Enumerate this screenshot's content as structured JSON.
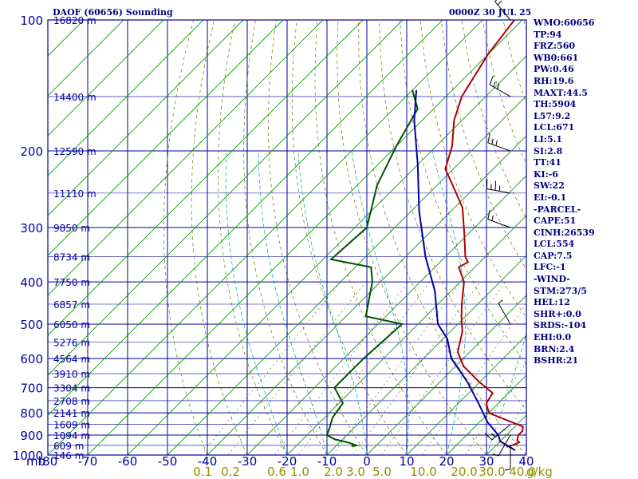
{
  "header": {
    "title": "DAOF (60656) Sounding",
    "time": "0000Z 30 JUL 25"
  },
  "stats": [
    "WMO:60656",
    "TP:94",
    "FRZ:560",
    "WB0:661",
    "PW:0.46",
    "RH:19.6",
    "MAXT:44.5",
    "TH:5904",
    "L57:9.2",
    "LCL:671",
    "LI:5.1",
    "SI:2.8",
    "TT:41",
    "KI:-6",
    "SW:22",
    "EI:-0.1",
    "-PARCEL-",
    "CAPE:51",
    "CINH:26539",
    "LCL:554",
    "CAP:7.5",
    "LFC:-1",
    "-WIND-",
    "STM:273/5",
    "HEL:12",
    "SHR+:0.0",
    "SRDS:-104",
    "EHI:0.0",
    "BRN:2.4",
    "BSHR:21"
  ],
  "colors": {
    "grid": "#0000a0",
    "isotherm": "#00a000",
    "temperature": "#b00000",
    "dewpoint": "#005000",
    "parcel": "#0000a0",
    "mixing": "#a0a000",
    "moist": "#00a0a0",
    "text": "#000080"
  },
  "chart_data": {
    "type": "line",
    "title": "DAOF (60656) Sounding",
    "x_unit_label": "-80",
    "x_ticks": [
      "-80",
      "-70",
      "-60",
      "-50",
      "-40",
      "-30",
      "-20",
      "-10",
      "0",
      "10",
      "20",
      "30",
      "40"
    ],
    "y_unit_label": "mb",
    "y_ticks": [
      "100",
      "200",
      "300",
      "400",
      "500",
      "600",
      "700",
      "800",
      "900",
      "1000"
    ],
    "height_labels": [
      {
        "p": 100,
        "label": "16820 m"
      },
      {
        "p": 150,
        "label": "14400 m"
      },
      {
        "p": 200,
        "label": "12590 m"
      },
      {
        "p": 250,
        "label": "11110 m"
      },
      {
        "p": 300,
        "label": "9850 m"
      },
      {
        "p": 350,
        "label": "8734 m"
      },
      {
        "p": 400,
        "label": "7750 m"
      },
      {
        "p": 450,
        "label": "6857 m"
      },
      {
        "p": 500,
        "label": "6050 m"
      },
      {
        "p": 550,
        "label": "5276 m"
      },
      {
        "p": 600,
        "label": "4564 m"
      },
      {
        "p": 650,
        "label": "3910 m"
      },
      {
        "p": 700,
        "label": "3304 m"
      },
      {
        "p": 750,
        "label": "2708 m"
      },
      {
        "p": 800,
        "label": "2141 m"
      },
      {
        "p": 850,
        "label": "1609 m"
      },
      {
        "p": 900,
        "label": "1094 m"
      },
      {
        "p": 950,
        "label": "609 m"
      },
      {
        "p": 1000,
        "label": "146 m"
      }
    ],
    "mixing_ratio_labels": [
      "0.1",
      "0.2",
      "0.6",
      "1.0",
      "2.0",
      "3.0",
      "5.0",
      "10.0",
      "20.0",
      "30.0",
      "40.0"
    ],
    "mixing_ratio_unit": "g/kg",
    "ylim": [
      100,
      1000
    ],
    "xlim": [
      -80,
      40
    ],
    "series": [
      {
        "key": "temperature",
        "points": [
          [
            33,
            958
          ],
          [
            34,
            950
          ],
          [
            35,
            935
          ],
          [
            34,
            925
          ],
          [
            33,
            900
          ],
          [
            33,
            880
          ],
          [
            32,
            860
          ],
          [
            28,
            840
          ],
          [
            20,
            800
          ],
          [
            17,
            760
          ],
          [
            16,
            720
          ],
          [
            10,
            680
          ],
          [
            2,
            625
          ],
          [
            -3,
            580
          ],
          [
            -7,
            520
          ],
          [
            -9,
            500
          ],
          [
            -11,
            480
          ],
          [
            -14,
            450
          ],
          [
            -19,
            400
          ],
          [
            -24,
            370
          ],
          [
            -23,
            360
          ],
          [
            -25,
            350
          ],
          [
            -31,
            310
          ],
          [
            -38,
            270
          ],
          [
            -46,
            240
          ],
          [
            -52,
            220
          ],
          [
            -56,
            195
          ],
          [
            -62,
            170
          ],
          [
            -66,
            150
          ],
          [
            -70,
            120
          ],
          [
            -72,
            100
          ]
        ]
      },
      {
        "key": "dewpoint",
        "points": [
          [
            -6,
            955
          ],
          [
            -5,
            950
          ],
          [
            -8,
            935
          ],
          [
            -12,
            920
          ],
          [
            -15,
            900
          ],
          [
            -16,
            870
          ],
          [
            -18,
            820
          ],
          [
            -19,
            760
          ],
          [
            -25,
            700
          ],
          [
            -25,
            600
          ],
          [
            -24,
            500
          ],
          [
            -35,
            480
          ],
          [
            -42,
            400
          ],
          [
            -46,
            370
          ],
          [
            -58,
            355
          ],
          [
            -57,
            300
          ],
          [
            -65,
            240
          ],
          [
            -70,
            195
          ],
          [
            -74,
            160
          ],
          [
            -80,
            145
          ]
        ]
      },
      {
        "key": "parcel",
        "points": [
          [
            36,
            975
          ],
          [
            30,
            930
          ],
          [
            28,
            900
          ],
          [
            22,
            840
          ],
          [
            15,
            760
          ],
          [
            7,
            680
          ],
          [
            -3,
            600
          ],
          [
            -9,
            540
          ],
          [
            -15,
            500
          ],
          [
            -24,
            420
          ],
          [
            -35,
            350
          ],
          [
            -48,
            275
          ],
          [
            -60,
            215
          ],
          [
            -72,
            170
          ],
          [
            -79,
            145
          ]
        ]
      }
    ],
    "wind_barbs": [
      {
        "p": 100,
        "dir": 320,
        "spd": 10
      },
      {
        "p": 150,
        "dir": 300,
        "spd": 15
      },
      {
        "p": 200,
        "dir": 290,
        "spd": 15
      },
      {
        "p": 250,
        "dir": 280,
        "spd": 20
      },
      {
        "p": 300,
        "dir": 290,
        "spd": 10
      },
      {
        "p": 500,
        "dir": 330,
        "spd": 5
      },
      {
        "p": 850,
        "dir": 230,
        "spd": 10
      },
      {
        "p": 900,
        "dir": 210,
        "spd": 5
      },
      {
        "p": 950,
        "dir": 180,
        "spd": 5
      }
    ]
  }
}
